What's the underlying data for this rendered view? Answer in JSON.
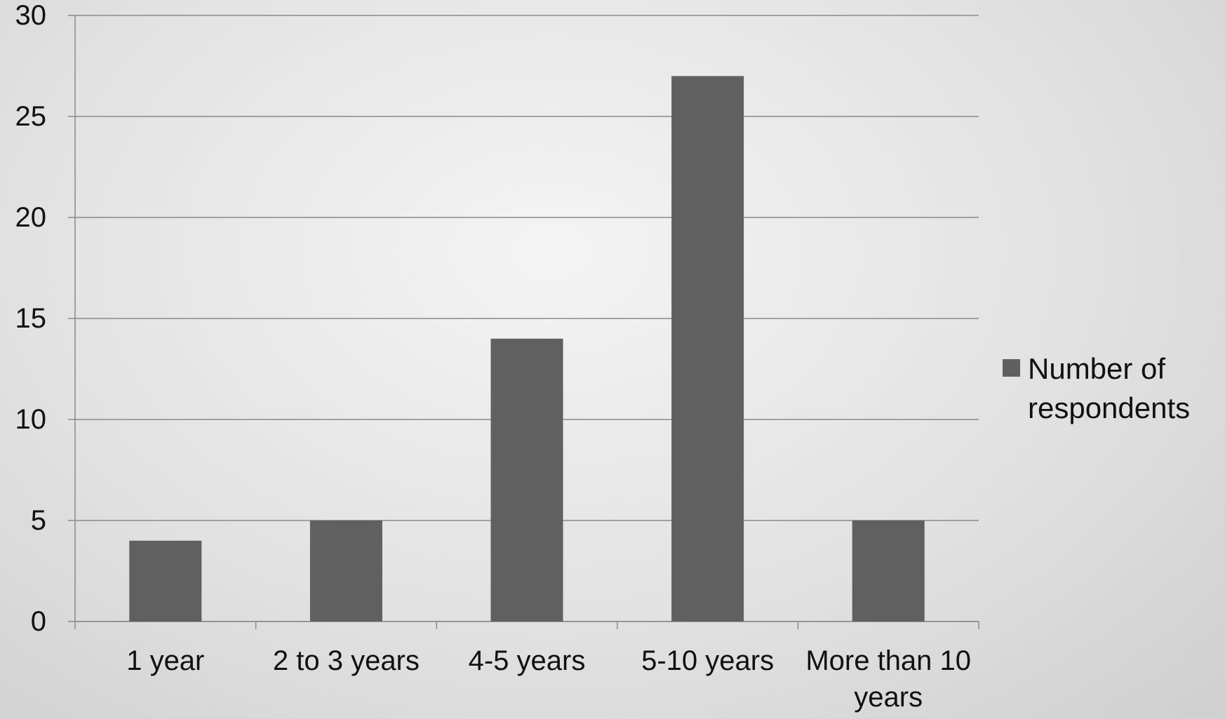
{
  "chart_data": {
    "type": "bar",
    "categories": [
      "1 year",
      "2 to 3 years",
      "4-5 years",
      "5-10 years",
      "More than 10 years"
    ],
    "series": [
      {
        "name": "Number of respondents",
        "color": "#606060",
        "values": [
          4,
          5,
          14,
          27,
          5
        ]
      }
    ],
    "ylim": [
      0,
      30
    ],
    "yticks": [
      0,
      5,
      10,
      15,
      20,
      25,
      30
    ],
    "grid": true,
    "legend": "right"
  }
}
